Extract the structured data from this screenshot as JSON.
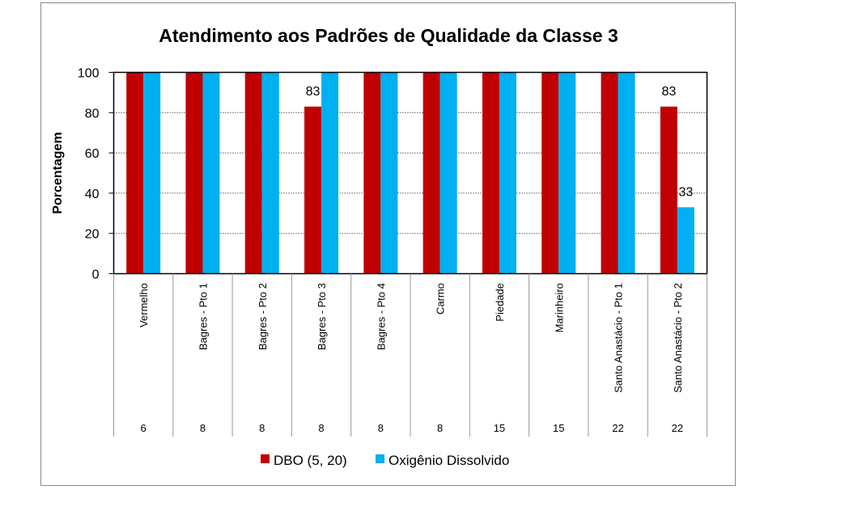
{
  "chart_data": {
    "type": "bar",
    "title": "Atendimento aos Padrões de Qualidade da Classe 3",
    "xlabel": "",
    "ylabel": "Porcentagem",
    "ylim": [
      0,
      100
    ],
    "yticks": [
      0,
      20,
      40,
      60,
      80,
      100
    ],
    "grid": true,
    "legend_position": "bottom",
    "categories": [
      "Vermelho",
      "Bagres - Pto 1",
      "Bagres - Pto 2",
      "Bagres - Pto 3",
      "Bagres - Pto 4",
      "Carmo",
      "Piedade",
      "Marinheiro",
      "Santo Anastácio - Pto 1",
      "Santo Anastácio - Pto 2"
    ],
    "secondary_row": [
      "6",
      "8",
      "8",
      "8",
      "8",
      "8",
      "15",
      "15",
      "22",
      "22"
    ],
    "series": [
      {
        "name": "DBO (5, 20)",
        "color": "#C00000",
        "values": [
          100,
          100,
          100,
          83,
          100,
          100,
          100,
          100,
          100,
          83
        ],
        "data_labels": [
          null,
          null,
          null,
          "83",
          null,
          null,
          null,
          null,
          null,
          "83"
        ]
      },
      {
        "name": "Oxigênio Dissolvido",
        "color": "#00B0F0",
        "values": [
          100,
          100,
          100,
          100,
          100,
          100,
          100,
          100,
          100,
          33
        ],
        "data_labels": [
          null,
          null,
          null,
          null,
          null,
          null,
          null,
          null,
          null,
          "33"
        ]
      }
    ]
  }
}
